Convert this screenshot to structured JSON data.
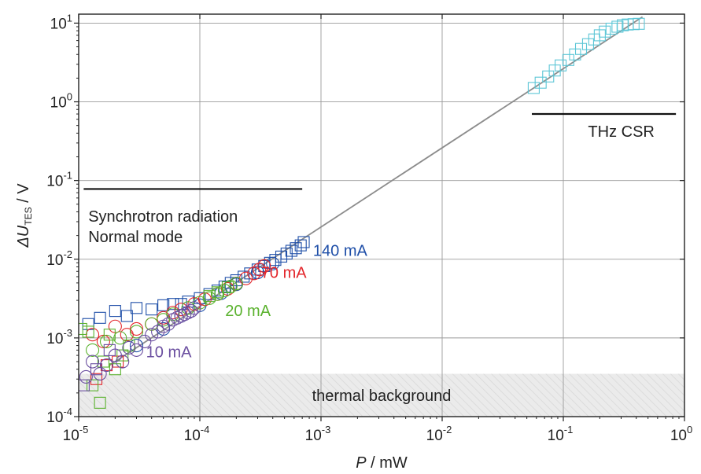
{
  "chart_data": {
    "type": "scatter",
    "x_scale": "log",
    "y_scale": "log",
    "xlim": [
      1e-05,
      1
    ],
    "ylim": [
      0.0001,
      13
    ],
    "grid": true,
    "xlabel_italic": "P",
    "xlabel_rest": " / mW",
    "ylabel_italic": "ΔU",
    "ylabel_sub": "TES",
    "ylabel_rest": " / V",
    "x_ticks": [
      {
        "value": 1e-05,
        "base": "10",
        "exp": "-5"
      },
      {
        "value": 0.0001,
        "base": "10",
        "exp": "-4"
      },
      {
        "value": 0.001,
        "base": "10",
        "exp": "-3"
      },
      {
        "value": 0.01,
        "base": "10",
        "exp": "-2"
      },
      {
        "value": 0.1,
        "base": "10",
        "exp": "-1"
      },
      {
        "value": 1,
        "base": "10",
        "exp": "0"
      }
    ],
    "y_ticks": [
      {
        "value": 0.0001,
        "base": "10",
        "exp": "-4"
      },
      {
        "value": 0.001,
        "base": "10",
        "exp": "-3"
      },
      {
        "value": 0.01,
        "base": "10",
        "exp": "-2"
      },
      {
        "value": 0.1,
        "base": "10",
        "exp": "-1"
      },
      {
        "value": 1,
        "base": "10",
        "exp": "0"
      },
      {
        "value": 10,
        "base": "10",
        "exp": "1"
      }
    ],
    "fit_line": {
      "color": "#8c8c8c",
      "x": [
        1.8e-05,
        0.45
      ],
      "y": [
        0.00045,
        12
      ]
    },
    "thermal_background": {
      "label": "thermal background",
      "ylim": [
        0.0001,
        0.00035
      ]
    },
    "annotations": [
      {
        "lines": [
          "Synchrotron radiation",
          "Normal mode"
        ],
        "bar_x": [
          1.1e-05,
          0.0007
        ],
        "bar_y": 0.078,
        "text_x": 1.2e-05,
        "text_y": [
          0.03,
          0.0165
        ]
      },
      {
        "lines": [
          "THz CSR"
        ],
        "bar_x": [
          0.055,
          0.85
        ],
        "bar_y": 0.7,
        "text_x": 0.16,
        "text_y": [
          0.36
        ]
      }
    ],
    "series": [
      {
        "name": "140 mA",
        "color": "#1f4fa8",
        "label_x": 0.00086,
        "label_y": 0.011,
        "circles": [
          [
            3e-05,
            0.0008
          ],
          [
            5e-05,
            0.0013
          ],
          [
            7e-05,
            0.0019
          ],
          [
            0.0001,
            0.0026
          ],
          [
            0.00015,
            0.0037
          ],
          [
            0.0002,
            0.0048
          ],
          [
            0.0003,
            0.0068
          ],
          [
            0.0004,
            0.0088
          ]
        ],
        "squares": [
          [
            1.2e-05,
            0.0015
          ],
          [
            1.5e-05,
            0.0018
          ],
          [
            2e-05,
            0.0022
          ],
          [
            2.5e-05,
            0.0019
          ],
          [
            3e-05,
            0.0024
          ],
          [
            4e-05,
            0.0023
          ],
          [
            5e-05,
            0.0026
          ],
          [
            6e-05,
            0.0027
          ],
          [
            7e-05,
            0.0027
          ],
          [
            8e-05,
            0.0029
          ],
          [
            0.0001,
            0.0032
          ],
          [
            0.00012,
            0.0036
          ],
          [
            0.00014,
            0.004
          ],
          [
            0.00016,
            0.0045
          ],
          [
            0.00018,
            0.005
          ],
          [
            0.0002,
            0.0054
          ],
          [
            0.00023,
            0.006
          ],
          [
            0.00026,
            0.0066
          ],
          [
            0.0003,
            0.0074
          ],
          [
            0.00034,
            0.0082
          ],
          [
            0.00038,
            0.009
          ],
          [
            0.00042,
            0.0098
          ],
          [
            0.00047,
            0.0108
          ],
          [
            0.00052,
            0.0118
          ],
          [
            0.00057,
            0.0128
          ],
          [
            0.00062,
            0.0138
          ],
          [
            0.00068,
            0.015
          ],
          [
            0.00072,
            0.0165
          ]
        ]
      },
      {
        "name": "70 mA",
        "color": "#e3262b",
        "label_x": 0.00032,
        "label_y": 0.0058,
        "circles": [
          [
            1.3e-05,
            0.0011
          ],
          [
            1.6e-05,
            0.0009
          ],
          [
            2e-05,
            0.0014
          ],
          [
            2.5e-05,
            0.0011
          ],
          [
            3e-05,
            0.0013
          ],
          [
            4e-05,
            0.0015
          ],
          [
            5e-05,
            0.0018
          ],
          [
            6e-05,
            0.0021
          ],
          [
            7e-05,
            0.0023
          ],
          [
            9e-05,
            0.0027
          ],
          [
            0.00011,
            0.0031
          ],
          [
            0.00014,
            0.0036
          ],
          [
            0.00017,
            0.0042
          ],
          [
            0.0002,
            0.0049
          ],
          [
            0.00024,
            0.0057
          ],
          [
            0.00028,
            0.0066
          ],
          [
            0.00031,
            0.0074
          ],
          [
            0.00034,
            0.0082
          ]
        ],
        "squares": [
          [
            1.4e-05,
            0.0003
          ],
          [
            1.7e-05,
            0.00045
          ],
          [
            2.1e-05,
            0.0005
          ]
        ]
      },
      {
        "name": "20 mA",
        "color": "#5ab22e",
        "label_x": 0.000162,
        "label_y": 0.0019,
        "circles": [
          [
            1.3e-05,
            0.0007
          ],
          [
            1.7e-05,
            0.0009
          ],
          [
            2.2e-05,
            0.001
          ],
          [
            3e-05,
            0.0012
          ],
          [
            4e-05,
            0.0015
          ],
          [
            5e-05,
            0.0017
          ],
          [
            6e-05,
            0.002
          ],
          [
            8e-05,
            0.0024
          ],
          [
            0.0001,
            0.0028
          ],
          [
            0.00012,
            0.0032
          ],
          [
            0.00014,
            0.0036
          ],
          [
            0.00016,
            0.004
          ],
          [
            0.00018,
            0.0045
          ],
          [
            0.0002,
            0.0049
          ]
        ],
        "squares": [
          [
            1.05e-05,
            0.0013
          ],
          [
            1.2e-05,
            0.0012
          ],
          [
            1.3e-05,
            0.00025
          ],
          [
            1.5e-05,
            0.00015
          ],
          [
            1.6e-05,
            0.0005
          ],
          [
            1.8e-05,
            0.0011
          ],
          [
            2e-05,
            0.0004
          ],
          [
            2.3e-05,
            0.0006
          ],
          [
            2.6e-05,
            0.0008
          ],
          [
            0.00012,
            0.0034
          ],
          [
            0.00014,
            0.0038
          ],
          [
            0.00017,
            0.0044
          ]
        ]
      },
      {
        "name": "10 mA",
        "color": "#6b4fa0",
        "label_x": 3.6e-05,
        "label_y": 0.00057,
        "circles": [
          [
            1.15e-05,
            0.00032
          ],
          [
            1.3e-05,
            0.0005
          ],
          [
            1.5e-05,
            0.00035
          ],
          [
            1.7e-05,
            0.00045
          ],
          [
            2e-05,
            0.0006
          ],
          [
            2.3e-05,
            0.0005
          ],
          [
            2.6e-05,
            0.00075
          ],
          [
            3e-05,
            0.0007
          ],
          [
            3.5e-05,
            0.0009
          ],
          [
            4e-05,
            0.0011
          ],
          [
            4.5e-05,
            0.0012
          ],
          [
            5e-05,
            0.0014
          ],
          [
            5.5e-05,
            0.0015
          ],
          [
            6e-05,
            0.0017
          ],
          [
            6.5e-05,
            0.0018
          ],
          [
            7e-05,
            0.0019
          ],
          [
            7.5e-05,
            0.002
          ],
          [
            8e-05,
            0.0021
          ],
          [
            8.5e-05,
            0.0022
          ],
          [
            9e-05,
            0.0024
          ]
        ],
        "squares": [
          [
            1.1e-05,
            0.00025
          ],
          [
            1.4e-05,
            0.0004
          ],
          [
            1.8e-05,
            0.0007
          ]
        ]
      },
      {
        "name": "THz CSR",
        "color": "#5cc6d6",
        "label_x": null,
        "label_y": null,
        "circles": [],
        "squares": [
          [
            0.057,
            1.5
          ],
          [
            0.065,
            1.75
          ],
          [
            0.075,
            2.1
          ],
          [
            0.085,
            2.5
          ],
          [
            0.095,
            2.9
          ],
          [
            0.11,
            3.4
          ],
          [
            0.125,
            4.0
          ],
          [
            0.14,
            4.7
          ],
          [
            0.16,
            5.4
          ],
          [
            0.18,
            6.2
          ],
          [
            0.2,
            7.0
          ],
          [
            0.22,
            7.8
          ],
          [
            0.25,
            8.5
          ],
          [
            0.28,
            9.0
          ],
          [
            0.31,
            9.4
          ],
          [
            0.34,
            9.6
          ],
          [
            0.38,
            9.7
          ],
          [
            0.42,
            9.8
          ]
        ]
      }
    ]
  }
}
